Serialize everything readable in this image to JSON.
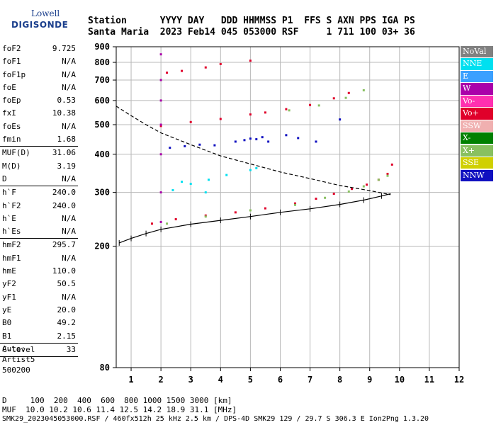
{
  "logo": {
    "line1": "Lowell",
    "line2": "DIGISONDE"
  },
  "header": {
    "line1": "Station      YYYY DAY   DDD HHMMSS P1  FFS S AXN PPS IGA PS",
    "line2": "Santa Maria  2023 Feb14 045 053000 RSF     1 711 100 03+ 36"
  },
  "params": [
    [
      [
        "foF2",
        "9.725"
      ],
      [
        "foF1",
        "N/A"
      ],
      [
        "foF1p",
        "N/A"
      ],
      [
        "foE",
        "N/A"
      ],
      [
        "foEp",
        "0.53"
      ],
      [
        "fxI",
        "10.38"
      ],
      [
        "foEs",
        "N/A"
      ],
      [
        "fmin",
        "1.68"
      ]
    ],
    [
      [
        "MUF(D)",
        "31.06"
      ],
      [
        "M(D)",
        "3.19"
      ],
      [
        "D",
        "N/A"
      ]
    ],
    [
      [
        "h`F",
        "240.0"
      ],
      [
        "h`F2",
        "240.0"
      ],
      [
        "h`E",
        "N/A"
      ],
      [
        "h`Es",
        "N/A"
      ]
    ],
    [
      [
        "hmF2",
        "295.7"
      ],
      [
        "hmF1",
        "N/A"
      ],
      [
        "hmE",
        "110.0"
      ],
      [
        "yF2",
        "50.5"
      ],
      [
        "yF1",
        "N/A"
      ],
      [
        "yE",
        "20.0"
      ],
      [
        "B0",
        "49.2"
      ],
      [
        "B1",
        "2.15"
      ]
    ],
    [
      [
        "C-level",
        "33"
      ]
    ]
  ],
  "autoscale": {
    "line1": "Auto:",
    "line2": "Artist5",
    "line3": "500200"
  },
  "legend": [
    {
      "label": "NoVal",
      "color": "#808080"
    },
    {
      "label": "NNE",
      "color": "#00e0f0"
    },
    {
      "label": "E",
      "color": "#3aa0ff"
    },
    {
      "label": "W",
      "color": "#aa00aa"
    },
    {
      "label": "Vo-",
      "color": "#ff30b0"
    },
    {
      "label": "Vo+",
      "color": "#e0002a"
    },
    {
      "label": "SSW",
      "color": "#f0b0b0"
    },
    {
      "label": "X-",
      "color": "#008000"
    },
    {
      "label": "X+",
      "color": "#88c060"
    },
    {
      "label": "SSE",
      "color": "#d0d000"
    },
    {
      "label": "NNW",
      "color": "#1010c0"
    }
  ],
  "footer": {
    "line1": "D     100  200  400  600  800 1000 1500 3000 [km]",
    "line2": "MUF  10.0 10.2 10.6 11.4 12.5 14.2 18.9 31.1 [MHz]",
    "line3": "SMK29_2023045053000.RSF / 460fx512h 25 kHz 2.5 km / DPS-4D SMK29 129 / 29.7 S 306.3 E Ion2Png 1.3.20"
  },
  "chart_data": {
    "type": "scatter",
    "title": "",
    "xlabel": "",
    "ylabel": "",
    "xlim": [
      0.5,
      12
    ],
    "ylim": [
      80,
      900
    ],
    "y_scale": "log",
    "x_ticks": [
      1,
      2,
      3,
      4,
      5,
      6,
      7,
      8,
      9,
      10,
      11,
      12
    ],
    "y_ticks": [
      80,
      200,
      300,
      400,
      500,
      600,
      700,
      800,
      900
    ],
    "grid": true,
    "series": [
      {
        "name": "Vo+",
        "color": "#e0002a",
        "points": [
          [
            1.7,
            237
          ],
          [
            2.5,
            245
          ],
          [
            3.5,
            252
          ],
          [
            4.5,
            258
          ],
          [
            5.5,
            266
          ],
          [
            6.5,
            276
          ],
          [
            7.2,
            286
          ],
          [
            7.8,
            297
          ],
          [
            8.4,
            308
          ],
          [
            8.9,
            318
          ],
          [
            9.3,
            330
          ],
          [
            9.6,
            345
          ],
          [
            9.75,
            370
          ],
          [
            2.0,
            495
          ],
          [
            3.0,
            510
          ],
          [
            4.0,
            522
          ],
          [
            5.0,
            540
          ],
          [
            5.5,
            548
          ],
          [
            6.2,
            562
          ],
          [
            7.0,
            580
          ],
          [
            7.8,
            610
          ],
          [
            8.3,
            635
          ],
          [
            2.2,
            740
          ],
          [
            2.7,
            750
          ],
          [
            3.5,
            770
          ],
          [
            4.0,
            790
          ],
          [
            5.0,
            810
          ]
        ]
      },
      {
        "name": "X+",
        "color": "#88c060",
        "points": [
          [
            2.2,
            237
          ],
          [
            3.5,
            250
          ],
          [
            5.0,
            262
          ],
          [
            6.5,
            273
          ],
          [
            7.5,
            288
          ],
          [
            8.3,
            302
          ],
          [
            8.8,
            314
          ],
          [
            9.3,
            330
          ],
          [
            9.6,
            340
          ],
          [
            6.3,
            557
          ],
          [
            7.3,
            578
          ],
          [
            8.2,
            612
          ],
          [
            8.8,
            648
          ]
        ]
      },
      {
        "name": "NNW",
        "color": "#1010c0",
        "points": [
          [
            2.3,
            420
          ],
          [
            2.8,
            425
          ],
          [
            3.3,
            430
          ],
          [
            3.8,
            428
          ],
          [
            4.5,
            440
          ],
          [
            4.8,
            445
          ],
          [
            5.0,
            450
          ],
          [
            5.2,
            448
          ],
          [
            5.4,
            455
          ],
          [
            5.6,
            440
          ],
          [
            6.2,
            462
          ],
          [
            6.6,
            452
          ],
          [
            7.2,
            440
          ],
          [
            8.0,
            520
          ]
        ]
      },
      {
        "name": "NNE",
        "color": "#00e0f0",
        "points": [
          [
            2.4,
            305
          ],
          [
            2.7,
            325
          ],
          [
            3.0,
            320
          ],
          [
            3.5,
            300
          ],
          [
            3.6,
            330
          ],
          [
            4.2,
            342
          ],
          [
            5.0,
            355
          ],
          [
            5.2,
            360
          ]
        ]
      },
      {
        "name": "W",
        "color": "#aa00aa",
        "points": [
          [
            2.0,
            240
          ],
          [
            2.0,
            300
          ],
          [
            2.0,
            400
          ],
          [
            2.0,
            500
          ],
          [
            2.0,
            600
          ],
          [
            2.0,
            700
          ],
          [
            2.0,
            850
          ]
        ]
      }
    ],
    "lines": [
      {
        "name": "Virtual height trace",
        "style": "solid",
        "points": [
          [
            0.6,
            205
          ],
          [
            1.0,
            212
          ],
          [
            1.5,
            220
          ],
          [
            2.0,
            227
          ],
          [
            3.0,
            236
          ],
          [
            4.0,
            243
          ],
          [
            5.0,
            250
          ],
          [
            6.0,
            258
          ],
          [
            7.0,
            265
          ],
          [
            8.0,
            274
          ],
          [
            8.8,
            283
          ],
          [
            9.4,
            292
          ],
          [
            9.7,
            297
          ],
          [
            9.65,
            295
          ]
        ]
      },
      {
        "name": "Electron density profile",
        "style": "dashed",
        "points": [
          [
            0.5,
            575
          ],
          [
            1.0,
            535
          ],
          [
            1.5,
            500
          ],
          [
            2.0,
            470
          ],
          [
            3.0,
            430
          ],
          [
            4.0,
            395
          ],
          [
            5.0,
            372
          ],
          [
            6.0,
            350
          ],
          [
            7.0,
            333
          ],
          [
            8.0,
            316
          ],
          [
            9.0,
            304
          ],
          [
            9.7,
            295
          ]
        ]
      }
    ]
  }
}
